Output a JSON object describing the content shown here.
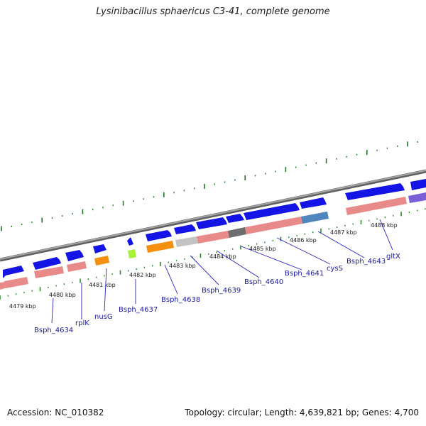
{
  "title": "Lysinibacillus sphaericus C3-41, complete genome",
  "footer": {
    "accession": "Accession: NC_010382",
    "topology": "Topology: circular; Length: 4,639,821 bp; Genes: 4,700"
  },
  "colors": {
    "forward_cds": "#1414e6",
    "rna_salmon": "#e88a8a",
    "orange": "#f5900f",
    "lime": "#a8f03a",
    "light_gray": "#c4c4c4",
    "dark_gray": "#6e6e6e",
    "steel_blue": "#4f86bd",
    "purple": "#7b5fd6",
    "backbone": "#8c8c8c",
    "major_tick": "#1f7a1f",
    "minor_tick": "#2e8b2e",
    "label": "#1a1aa8"
  },
  "kbp_labels": [
    "4479 kbp",
    "4480 kbp",
    "4481 kbp",
    "4482 kbp",
    "4483 kbp",
    "4484 kbp",
    "4485 kbp",
    "4486 kbp",
    "4487 kbp",
    "4488 kbp"
  ],
  "gene_labels": [
    "Bsph_4634",
    "rplK",
    "nusG",
    "Bsph_4637",
    "Bsph_4638",
    "Bsph_4639",
    "Bsph_4640",
    "Bsph_4641",
    "cysS",
    "Bsph_4643",
    "gltX"
  ]
}
